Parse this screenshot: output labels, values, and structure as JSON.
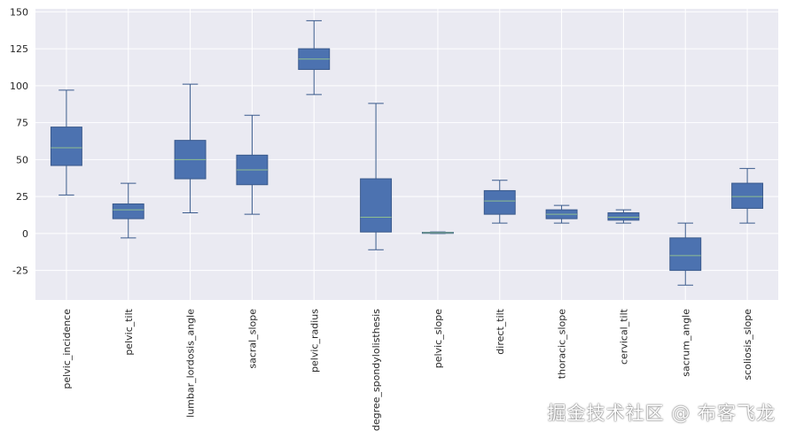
{
  "chart_data": {
    "type": "box",
    "title": "",
    "xlabel": "",
    "ylabel": "",
    "ylim": [
      -45,
      152
    ],
    "yticks": [
      -25,
      0,
      25,
      50,
      75,
      100,
      125,
      150
    ],
    "grid": true,
    "colors": {
      "box_fill": "#4c72b0",
      "box_edge": "#3a5a8c",
      "median": "#8fbf8f",
      "background": "#eaeaf2",
      "grid": "#ffffff"
    },
    "categories": [
      "pelvic_incidence",
      "pelvic_tilt",
      "lumbar_lordosis_angle",
      "sacral_slope",
      "pelvic_radius",
      "degree_spondylolisthesis",
      "pelvic_slope",
      "direct_tilt",
      "thoracic_slope",
      "cervical_tilt",
      "sacrum_angle",
      "scoliosis_slope"
    ],
    "boxes": [
      {
        "whislo": 26,
        "q1": 46,
        "med": 58,
        "q3": 72,
        "whishi": 97
      },
      {
        "whislo": -3,
        "q1": 10,
        "med": 16,
        "q3": 20,
        "whishi": 34
      },
      {
        "whislo": 14,
        "q1": 37,
        "med": 50,
        "q3": 63,
        "whishi": 101
      },
      {
        "whislo": 13,
        "q1": 33,
        "med": 43,
        "q3": 53,
        "whishi": 80
      },
      {
        "whislo": 94,
        "q1": 111,
        "med": 118,
        "q3": 125,
        "whishi": 144
      },
      {
        "whislo": -11,
        "q1": 1,
        "med": 11,
        "q3": 37,
        "whishi": 88
      },
      {
        "whislo": 0,
        "q1": 0.1,
        "med": 0.5,
        "q3": 0.8,
        "whishi": 1
      },
      {
        "whislo": 7,
        "q1": 13,
        "med": 22,
        "q3": 29,
        "whishi": 36
      },
      {
        "whislo": 7,
        "q1": 10,
        "med": 13,
        "q3": 16,
        "whishi": 19
      },
      {
        "whislo": 7,
        "q1": 9,
        "med": 11,
        "q3": 14,
        "whishi": 16
      },
      {
        "whislo": -35,
        "q1": -25,
        "med": -15,
        "q3": -3,
        "whishi": 7
      },
      {
        "whislo": 7,
        "q1": 17,
        "med": 25,
        "q3": 34,
        "whishi": 44
      }
    ]
  },
  "watermark": "掘金技术社区 @ 布客飞龙"
}
